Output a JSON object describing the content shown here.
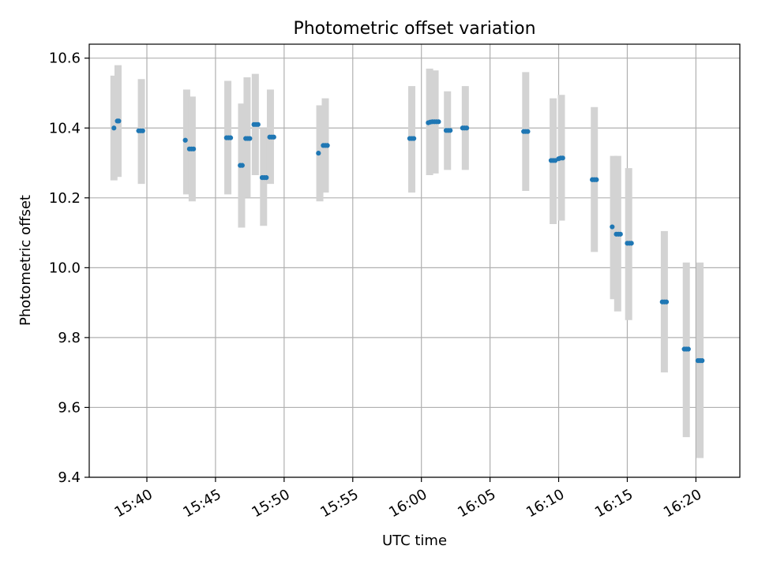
{
  "chart_data": {
    "type": "scatter",
    "title": "Photometric offset variation",
    "xlabel": "UTC time",
    "ylabel": "Photometric offset",
    "x_unit": "minutes after 15:00 UTC",
    "xlim": [
      35.8,
      83.2
    ],
    "ylim": [
      9.4,
      10.64
    ],
    "grid": true,
    "x_ticks": [
      {
        "value": 40,
        "label": "15:40"
      },
      {
        "value": 45,
        "label": "15:45"
      },
      {
        "value": 50,
        "label": "15:50"
      },
      {
        "value": 55,
        "label": "15:55"
      },
      {
        "value": 60,
        "label": "16:00"
      },
      {
        "value": 65,
        "label": "16:05"
      },
      {
        "value": 70,
        "label": "16:10"
      },
      {
        "value": 75,
        "label": "16:15"
      },
      {
        "value": 80,
        "label": "16:20"
      }
    ],
    "y_ticks": [
      {
        "value": 9.4,
        "label": "9.4"
      },
      {
        "value": 9.6,
        "label": "9.6"
      },
      {
        "value": 9.8,
        "label": "9.8"
      },
      {
        "value": 10.0,
        "label": "10.0"
      },
      {
        "value": 10.2,
        "label": "10.2"
      },
      {
        "value": 10.4,
        "label": "10.4"
      },
      {
        "value": 10.6,
        "label": "10.6"
      }
    ],
    "colors": {
      "points": "#1f77b4",
      "errorbars": "#d3d3d3",
      "grid": "#b0b0b0"
    },
    "error_bars": [
      {
        "x": 37.6,
        "low": 10.25,
        "high": 10.55
      },
      {
        "x": 37.9,
        "low": 10.26,
        "high": 10.58
      },
      {
        "x": 39.6,
        "low": 10.24,
        "high": 10.54
      },
      {
        "x": 42.9,
        "low": 10.21,
        "high": 10.51
      },
      {
        "x": 43.3,
        "low": 10.19,
        "high": 10.49
      },
      {
        "x": 45.9,
        "low": 10.21,
        "high": 10.535
      },
      {
        "x": 46.9,
        "low": 10.115,
        "high": 10.47
      },
      {
        "x": 47.3,
        "low": 10.2,
        "high": 10.545
      },
      {
        "x": 47.9,
        "low": 10.265,
        "high": 10.555
      },
      {
        "x": 48.5,
        "low": 10.12,
        "high": 10.4
      },
      {
        "x": 49.0,
        "low": 10.24,
        "high": 10.51
      },
      {
        "x": 52.6,
        "low": 10.19,
        "high": 10.465
      },
      {
        "x": 53.0,
        "low": 10.215,
        "high": 10.485
      },
      {
        "x": 59.3,
        "low": 10.215,
        "high": 10.52
      },
      {
        "x": 60.6,
        "low": 10.265,
        "high": 10.57
      },
      {
        "x": 61.0,
        "low": 10.27,
        "high": 10.565
      },
      {
        "x": 61.9,
        "low": 10.28,
        "high": 10.505
      },
      {
        "x": 63.2,
        "low": 10.28,
        "high": 10.52
      },
      {
        "x": 67.6,
        "low": 10.22,
        "high": 10.56
      },
      {
        "x": 69.6,
        "low": 10.125,
        "high": 10.485
      },
      {
        "x": 70.2,
        "low": 10.135,
        "high": 10.495
      },
      {
        "x": 72.6,
        "low": 10.045,
        "high": 10.46
      },
      {
        "x": 74.0,
        "low": 9.91,
        "high": 10.32
      },
      {
        "x": 74.3,
        "low": 9.875,
        "high": 10.32
      },
      {
        "x": 75.1,
        "low": 9.85,
        "high": 10.285
      },
      {
        "x": 77.7,
        "low": 9.7,
        "high": 10.105
      },
      {
        "x": 79.3,
        "low": 9.515,
        "high": 10.015
      },
      {
        "x": 80.3,
        "low": 9.455,
        "high": 10.015
      }
    ],
    "points": [
      {
        "x": 37.6,
        "y": 10.4
      },
      {
        "x": 37.85,
        "y": 10.42
      },
      {
        "x": 37.95,
        "y": 10.42
      },
      {
        "x": 39.4,
        "y": 10.392
      },
      {
        "x": 39.55,
        "y": 10.392
      },
      {
        "x": 39.7,
        "y": 10.392
      },
      {
        "x": 42.8,
        "y": 10.365
      },
      {
        "x": 43.1,
        "y": 10.34
      },
      {
        "x": 43.25,
        "y": 10.34
      },
      {
        "x": 43.4,
        "y": 10.34
      },
      {
        "x": 45.8,
        "y": 10.372
      },
      {
        "x": 45.95,
        "y": 10.372
      },
      {
        "x": 46.1,
        "y": 10.372
      },
      {
        "x": 46.8,
        "y": 10.293
      },
      {
        "x": 46.95,
        "y": 10.293
      },
      {
        "x": 47.2,
        "y": 10.37
      },
      {
        "x": 47.35,
        "y": 10.37
      },
      {
        "x": 47.5,
        "y": 10.37
      },
      {
        "x": 47.8,
        "y": 10.41
      },
      {
        "x": 47.95,
        "y": 10.41
      },
      {
        "x": 48.1,
        "y": 10.41
      },
      {
        "x": 48.4,
        "y": 10.258
      },
      {
        "x": 48.55,
        "y": 10.258
      },
      {
        "x": 48.7,
        "y": 10.258
      },
      {
        "x": 48.95,
        "y": 10.374
      },
      {
        "x": 49.1,
        "y": 10.374
      },
      {
        "x": 49.25,
        "y": 10.374
      },
      {
        "x": 52.5,
        "y": 10.328
      },
      {
        "x": 52.85,
        "y": 10.35
      },
      {
        "x": 53.0,
        "y": 10.35
      },
      {
        "x": 53.15,
        "y": 10.35
      },
      {
        "x": 59.15,
        "y": 10.37
      },
      {
        "x": 59.3,
        "y": 10.37
      },
      {
        "x": 59.45,
        "y": 10.37
      },
      {
        "x": 60.5,
        "y": 10.415
      },
      {
        "x": 60.65,
        "y": 10.417
      },
      {
        "x": 60.8,
        "y": 10.418
      },
      {
        "x": 60.95,
        "y": 10.418
      },
      {
        "x": 61.1,
        "y": 10.418
      },
      {
        "x": 61.25,
        "y": 10.418
      },
      {
        "x": 61.8,
        "y": 10.393
      },
      {
        "x": 61.95,
        "y": 10.393
      },
      {
        "x": 62.1,
        "y": 10.393
      },
      {
        "x": 63.0,
        "y": 10.4
      },
      {
        "x": 63.15,
        "y": 10.4
      },
      {
        "x": 63.3,
        "y": 10.4
      },
      {
        "x": 67.45,
        "y": 10.39
      },
      {
        "x": 67.6,
        "y": 10.39
      },
      {
        "x": 67.75,
        "y": 10.39
      },
      {
        "x": 69.45,
        "y": 10.307
      },
      {
        "x": 69.6,
        "y": 10.307
      },
      {
        "x": 69.75,
        "y": 10.307
      },
      {
        "x": 70.0,
        "y": 10.312
      },
      {
        "x": 70.15,
        "y": 10.314
      },
      {
        "x": 70.3,
        "y": 10.314
      },
      {
        "x": 72.45,
        "y": 10.252
      },
      {
        "x": 72.6,
        "y": 10.252
      },
      {
        "x": 72.75,
        "y": 10.252
      },
      {
        "x": 73.9,
        "y": 10.117
      },
      {
        "x": 74.2,
        "y": 10.096
      },
      {
        "x": 74.35,
        "y": 10.096
      },
      {
        "x": 74.5,
        "y": 10.096
      },
      {
        "x": 75.0,
        "y": 10.07
      },
      {
        "x": 75.15,
        "y": 10.07
      },
      {
        "x": 75.3,
        "y": 10.07
      },
      {
        "x": 77.55,
        "y": 9.902
      },
      {
        "x": 77.7,
        "y": 9.902
      },
      {
        "x": 77.85,
        "y": 9.902
      },
      {
        "x": 79.15,
        "y": 9.767
      },
      {
        "x": 79.3,
        "y": 9.767
      },
      {
        "x": 79.45,
        "y": 9.767
      },
      {
        "x": 80.15,
        "y": 9.734
      },
      {
        "x": 80.3,
        "y": 9.734
      },
      {
        "x": 80.45,
        "y": 9.734
      }
    ]
  }
}
